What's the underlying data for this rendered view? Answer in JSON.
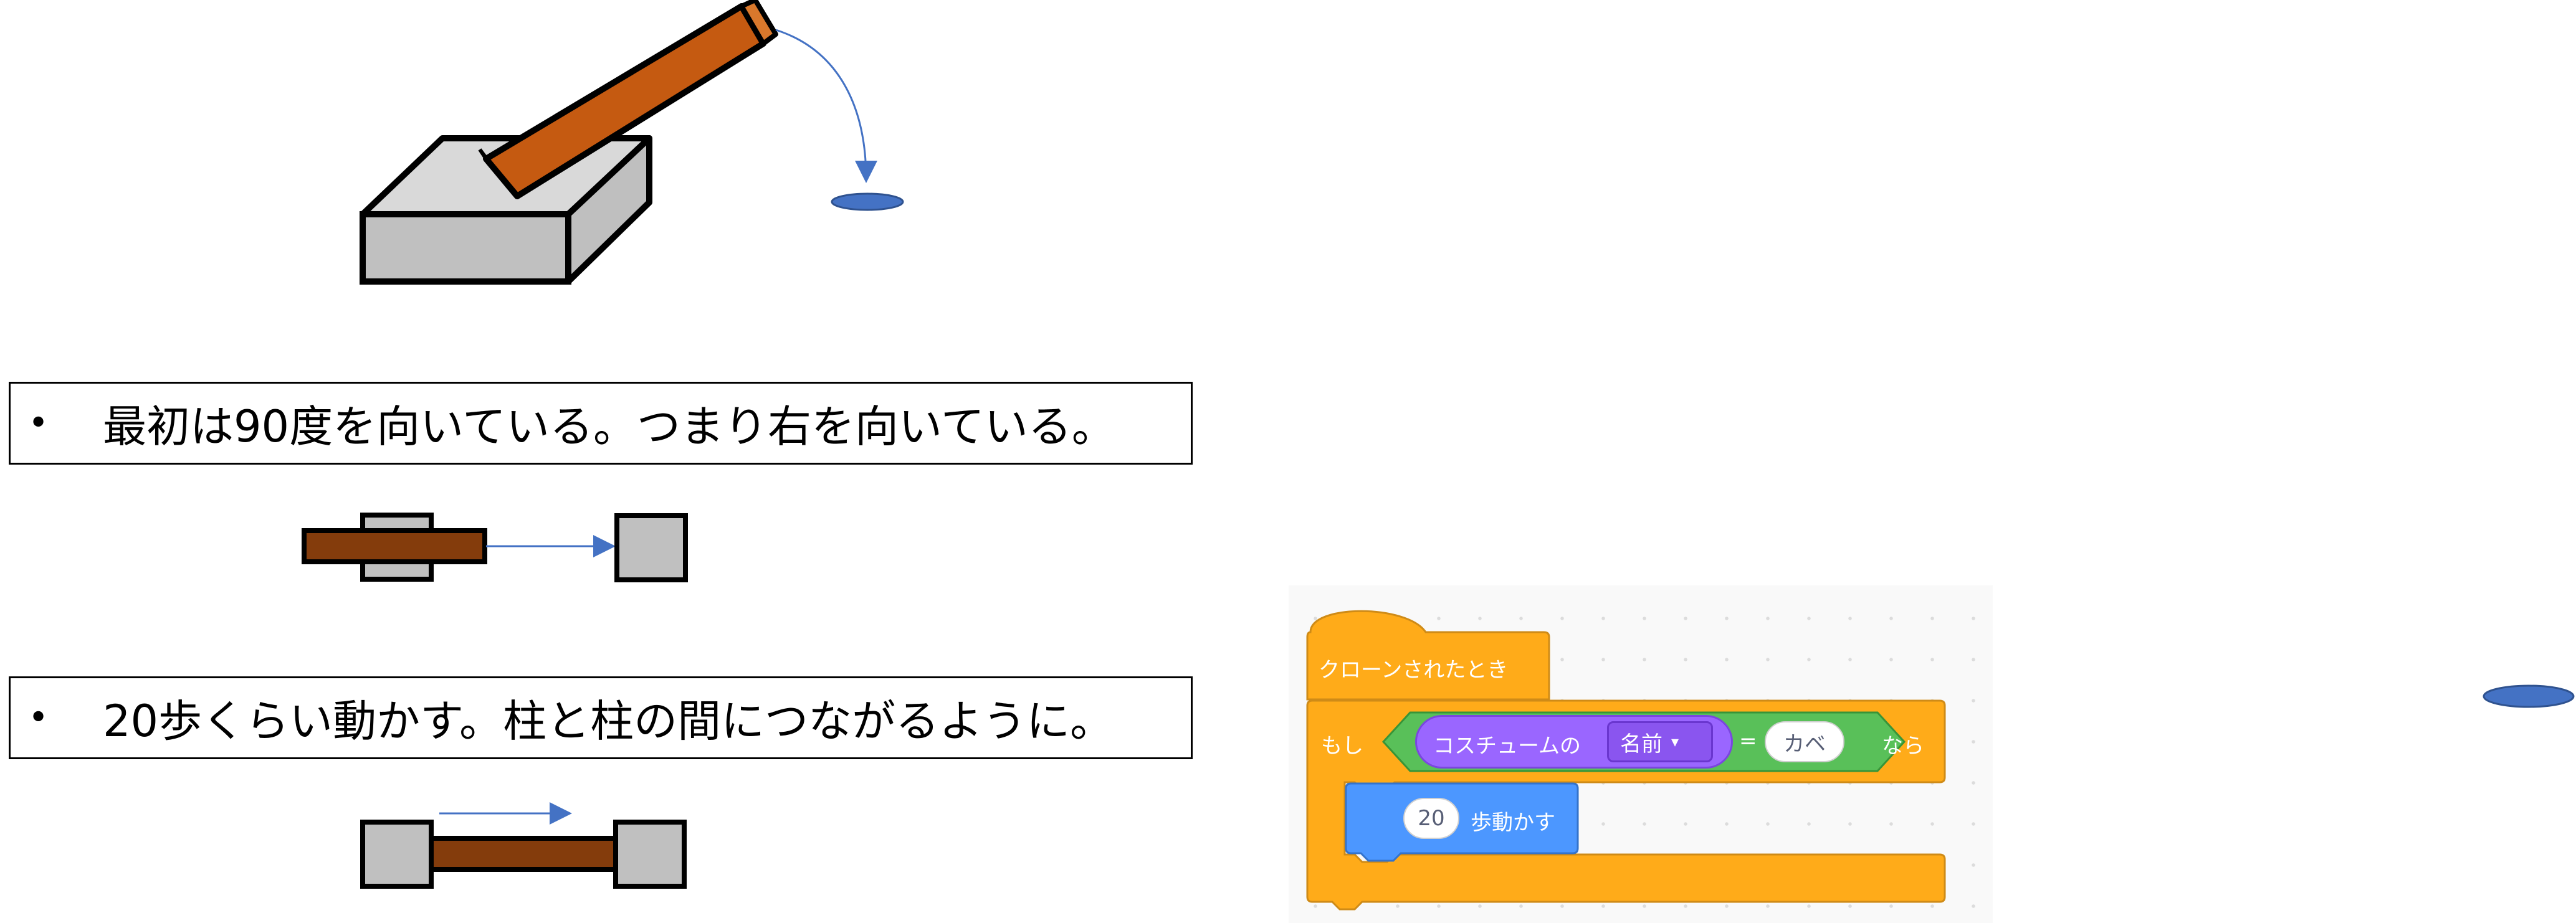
{
  "captions": [
    {
      "bullet": "•",
      "text": "最初は90度を向いている。つまり右を向いている。"
    },
    {
      "bullet": "•",
      "text": "20歩くらい動かす。柱と柱の間につながるように。"
    }
  ],
  "scratch": {
    "hat_label": "クローンされたとき",
    "if_label": "もし",
    "sensing_label": "コスチュームの",
    "dropdown_value": "名前",
    "dropdown_arrow": "▾",
    "equals": "=",
    "compare_value": "カベ",
    "then_label": "なら",
    "steps_value": "20",
    "move_label": "歩動かす"
  },
  "colors": {
    "beam": "#c55a11",
    "beam_dark": "#843c0c",
    "pillar": "#c0c0c0",
    "base_top": "#d9d9d9",
    "marker": "#4472c4",
    "events": "#ffab19",
    "control": "#ffab19",
    "operators": "#59c059",
    "looks": "#9966ff",
    "motion": "#4c97ff"
  }
}
